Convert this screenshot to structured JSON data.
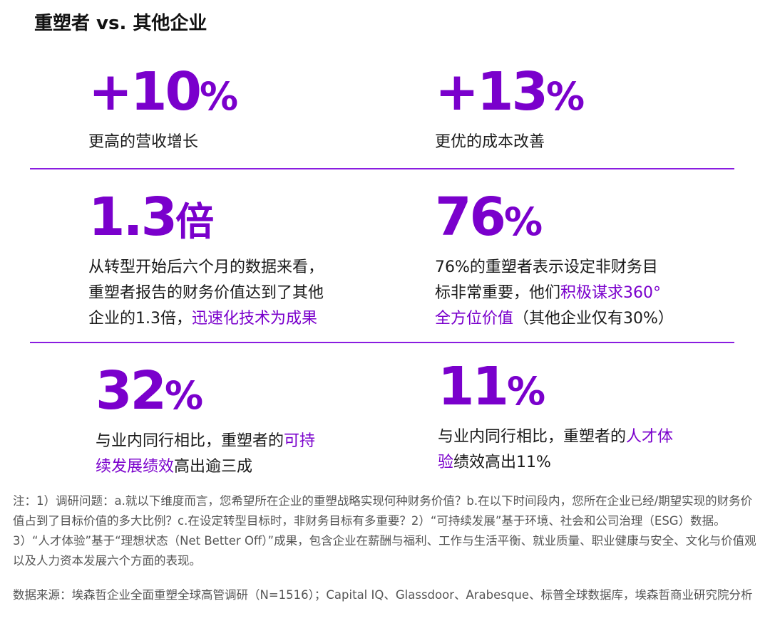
{
  "title": "重塑者 vs. 其他企业",
  "colors": {
    "accent": "#7a00cc",
    "divider": "#8a1de0",
    "text": "#1a1a1a",
    "note": "#555555"
  },
  "stats": [
    {
      "value": "+10",
      "suffix": "%",
      "lines": [
        [
          "更高的营收增长"
        ]
      ]
    },
    {
      "value": "+13",
      "suffix": "%",
      "lines": [
        [
          "更优的成本改善"
        ]
      ]
    },
    {
      "value": "1.3",
      "suffix": "倍",
      "lines": [
        [
          "从转型开始后六个月的数据来看，"
        ],
        [
          "重塑者报告的财务价值达到了其他"
        ],
        [
          "企业的1.3倍，",
          "迅速化技术为成果"
        ]
      ]
    },
    {
      "value": "76",
      "suffix": "%",
      "lines": [
        [
          "76%的重塑者表示设定非财务目"
        ],
        [
          "标非常重要，他们",
          "积极谋求360°"
        ],
        [
          "全方位价值",
          "（其他企业仅有30%）"
        ]
      ]
    },
    {
      "value": "32",
      "suffix": "%",
      "lines": [
        [
          "与业内同行相比，重塑者的",
          "可持"
        ],
        [
          "续发展绩效",
          "高出逾三成"
        ]
      ]
    },
    {
      "value": "11",
      "suffix": "%",
      "lines": [
        [
          "与业内同行相比，重塑者的",
          "人才体"
        ],
        [
          "验",
          "绩效高出11%"
        ]
      ]
    }
  ],
  "notes": {
    "note_text": "注：1）调研问题：a.就以下维度而言，您希望所在企业的重塑战略实现何种财务价值？b.在以下时间段内，您所在企业已经/期望实现的财务价值占到了目标价值的多大比例？c.在设定转型目标时，非财务目标有多重要？2）“可持续发展”基于环境、社会和公司治理（ESG）数据。3）“人才体验”基于“理想状态（Net Better Off）”成果，包含企业在薪酬与福利、工作与生活平衡、就业质量、职业健康与安全、文化与价值观以及人力资本发展六个方面的表现。",
    "source_text": "数据来源：埃森哲企业全面重塑全球高管调研（N=1516）；Capital IQ、Glassdoor、Arabesque、标普全球数据库，埃森哲商业研究院分析"
  }
}
